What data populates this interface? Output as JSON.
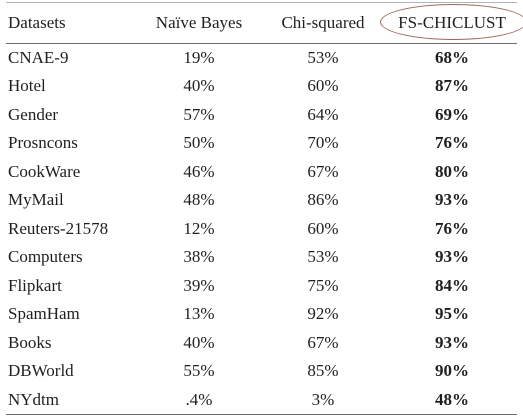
{
  "table": {
    "headers": [
      "Datasets",
      "Naïve Bayes",
      "Chi-squared",
      "FS-CHICLUST"
    ],
    "rows": [
      {
        "dataset": "CNAE-9",
        "naive_bayes": "19%",
        "chi_squared": "53%",
        "fs_chiclust": "68%"
      },
      {
        "dataset": "Hotel",
        "naive_bayes": "40%",
        "chi_squared": "60%",
        "fs_chiclust": "87%"
      },
      {
        "dataset": "Gender",
        "naive_bayes": "57%",
        "chi_squared": "64%",
        "fs_chiclust": "69%"
      },
      {
        "dataset": "Prosncons",
        "naive_bayes": "50%",
        "chi_squared": "70%",
        "fs_chiclust": "76%"
      },
      {
        "dataset": "CookWare",
        "naive_bayes": "46%",
        "chi_squared": "67%",
        "fs_chiclust": "80%"
      },
      {
        "dataset": "MyMail",
        "naive_bayes": "48%",
        "chi_squared": "86%",
        "fs_chiclust": "93%"
      },
      {
        "dataset": "Reuters-21578",
        "naive_bayes": "12%",
        "chi_squared": "60%",
        "fs_chiclust": "76%"
      },
      {
        "dataset": "Computers",
        "naive_bayes": "38%",
        "chi_squared": "53%",
        "fs_chiclust": "93%"
      },
      {
        "dataset": "Flipkart",
        "naive_bayes": "39%",
        "chi_squared": "75%",
        "fs_chiclust": "84%"
      },
      {
        "dataset": "SpamHam",
        "naive_bayes": "13%",
        "chi_squared": "92%",
        "fs_chiclust": "95%"
      },
      {
        "dataset": "Books",
        "naive_bayes": "40%",
        "chi_squared": "67%",
        "fs_chiclust": "93%"
      },
      {
        "dataset": "DBWorld",
        "naive_bayes": "55%",
        "chi_squared": "85%",
        "fs_chiclust": "90%"
      },
      {
        "dataset": "NYdtm",
        "naive_bayes": ".4%",
        "chi_squared": "3%",
        "fs_chiclust": "48%"
      }
    ]
  },
  "colors": {
    "text": "#1f1f1f",
    "rule": "#6a6a6a",
    "highlight_ellipse": "#9a6a5a"
  }
}
